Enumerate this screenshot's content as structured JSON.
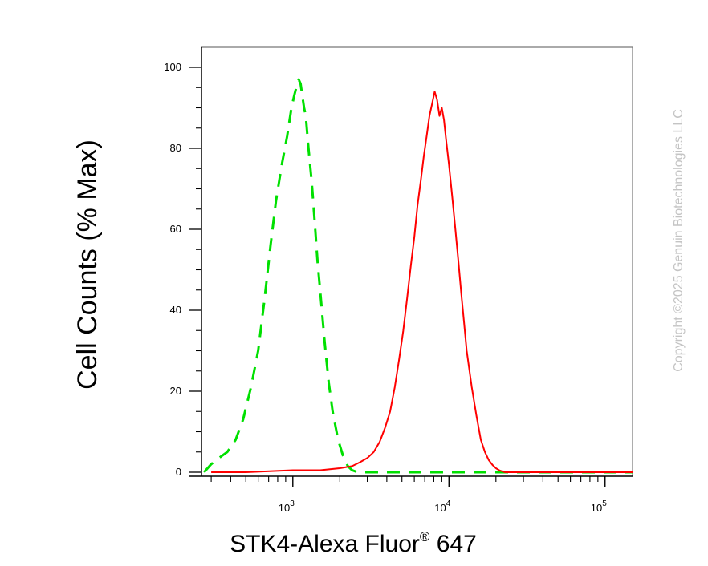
{
  "chart_data": {
    "type": "line",
    "title": "",
    "xlabel": "STK4-Alexa Fluor",
    "xlabel_sup": "®",
    "xlabel_suffix": " 647",
    "ylabel": "Cell Counts (% Max)",
    "xscale": "log",
    "xlim": [
      260,
      150000
    ],
    "ylim": [
      0,
      100
    ],
    "y_ticks": [
      "0",
      "20",
      "40",
      "60",
      "80",
      "100"
    ],
    "x_ticks": [
      {
        "base": "10",
        "exp": "3"
      },
      {
        "base": "10",
        "exp": "4"
      },
      {
        "base": "10",
        "exp": "5"
      }
    ],
    "grid": false,
    "legend": "none",
    "series": [
      {
        "color": "#00e000",
        "style": "dashed",
        "x": [
          270,
          300,
          350,
          380,
          430,
          480,
          540,
          600,
          660,
          720,
          780,
          850,
          920,
          980,
          1020,
          1060,
          1090,
          1120,
          1150,
          1180,
          1210,
          1260,
          1320,
          1380,
          1440,
          1520,
          1600,
          1700,
          1800,
          1950,
          2100,
          2250,
          2400,
          2600,
          3000,
          5000,
          10000,
          30000,
          100000,
          150000
        ],
        "y": [
          0,
          2,
          4,
          5,
          8,
          13,
          21,
          30,
          43,
          56,
          67,
          76,
          83,
          90,
          93,
          95.5,
          97,
          96,
          93,
          90,
          88,
          80,
          72,
          62,
          52,
          42,
          32,
          22,
          15,
          8,
          4,
          1.5,
          0.5,
          0,
          0,
          0,
          0,
          0,
          0,
          0
        ]
      },
      {
        "color": "#ff0000",
        "style": "solid",
        "x": [
          300,
          500,
          1000,
          1500,
          2000,
          2400,
          2700,
          3000,
          3300,
          3600,
          3900,
          4200,
          4500,
          4800,
          5100,
          5400,
          5700,
          6000,
          6300,
          6600,
          6900,
          7200,
          7500,
          7800,
          8100,
          8400,
          8700,
          9000,
          9300,
          9600,
          10000,
          10500,
          11000,
          11500,
          12000,
          12500,
          13000,
          14000,
          15000,
          16000,
          17000,
          18000,
          19000,
          20000,
          21000,
          22000,
          23000,
          25000,
          30000,
          50000,
          100000,
          150000
        ],
        "y": [
          0,
          0,
          0.5,
          0.5,
          1,
          1.5,
          2.5,
          3.5,
          5,
          7.5,
          11,
          15,
          21,
          28,
          35,
          43,
          51,
          58,
          66,
          72,
          78,
          83,
          88,
          91,
          94,
          92,
          88,
          90,
          87,
          82,
          76,
          68,
          60,
          52,
          44,
          37,
          30,
          21,
          14,
          8,
          5,
          3,
          1.8,
          1,
          0.5,
          0.2,
          0,
          0,
          0,
          0,
          0,
          0
        ]
      }
    ]
  },
  "watermark": "Copyright ©2025 Genuin Biotechnologies LLC",
  "colors": {
    "axis": "#000000",
    "watermark": "#c4c4c4"
  }
}
